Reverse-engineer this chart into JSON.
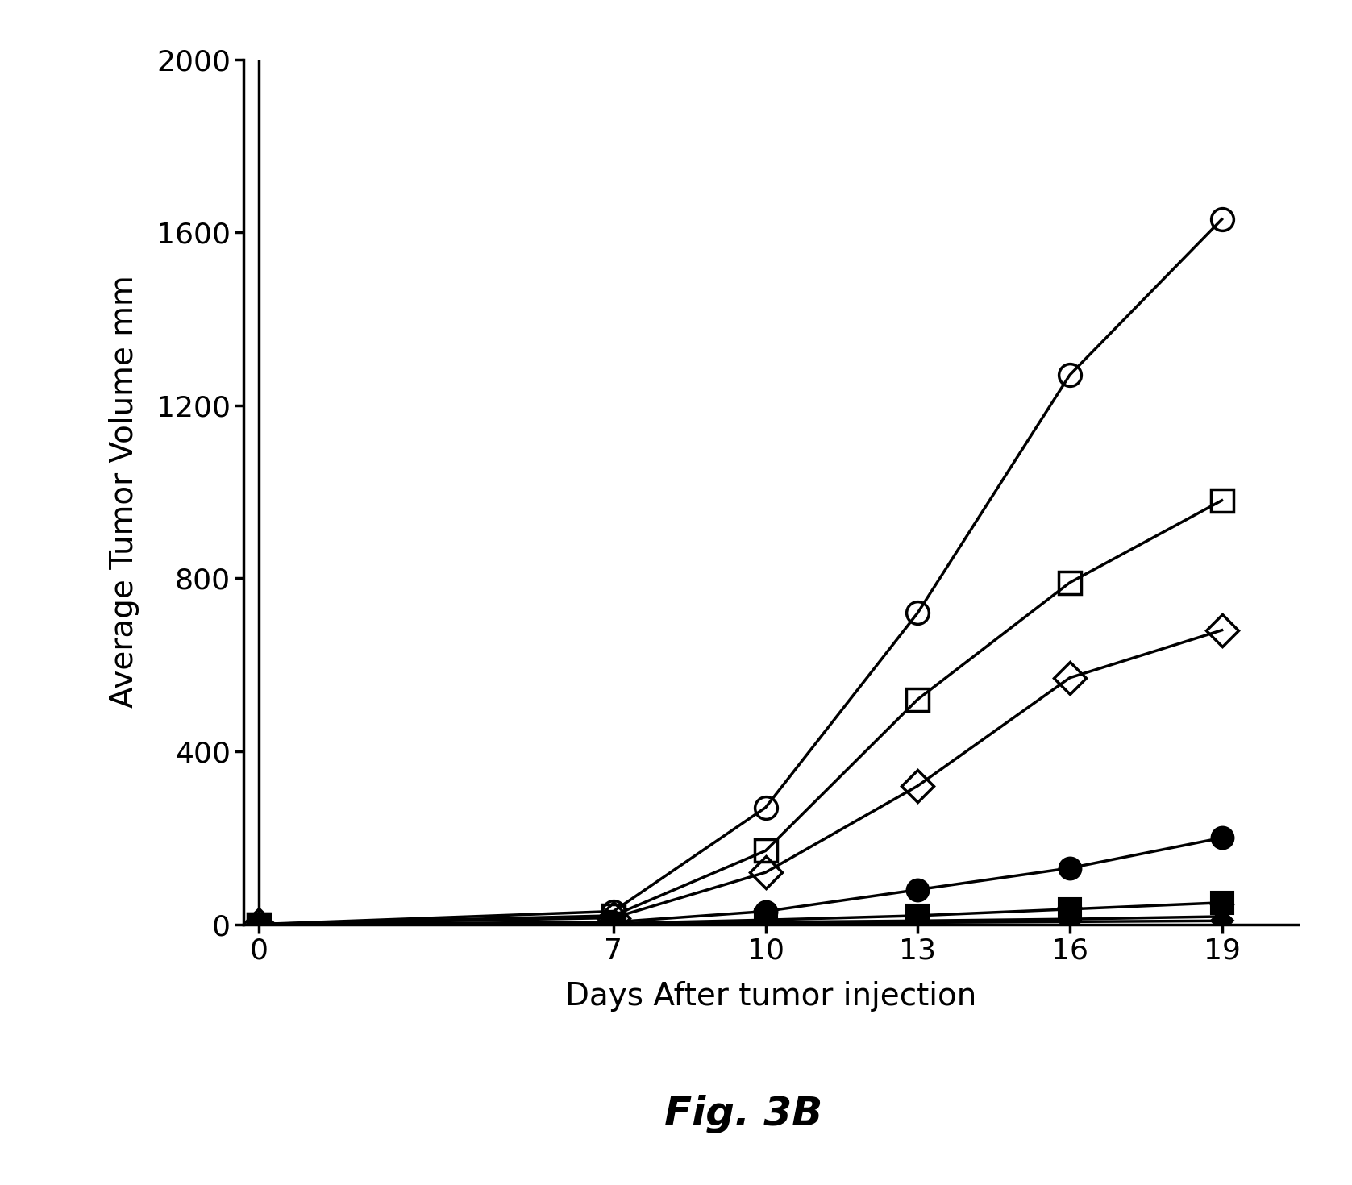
{
  "x": [
    0,
    7,
    10,
    13,
    16,
    19
  ],
  "series": [
    {
      "name": "open_circle",
      "y": [
        0,
        30,
        270,
        720,
        1270,
        1630
      ],
      "marker": "o",
      "fillstyle": "none",
      "color": "#000000",
      "markersize": 20,
      "linewidth": 2.5,
      "markeredgewidth": 2.5
    },
    {
      "name": "open_square",
      "y": [
        0,
        20,
        170,
        520,
        790,
        980
      ],
      "marker": "s",
      "fillstyle": "none",
      "color": "#000000",
      "markersize": 20,
      "linewidth": 2.5,
      "markeredgewidth": 2.5
    },
    {
      "name": "open_diamond",
      "y": [
        0,
        15,
        120,
        320,
        570,
        680
      ],
      "marker": "D",
      "fillstyle": "none",
      "color": "#000000",
      "markersize": 20,
      "linewidth": 2.5,
      "markeredgewidth": 2.5
    },
    {
      "name": "filled_circle",
      "y": [
        0,
        5,
        30,
        80,
        130,
        200
      ],
      "marker": "o",
      "fillstyle": "full",
      "color": "#000000",
      "markersize": 20,
      "linewidth": 2.5,
      "markeredgewidth": 1.5
    },
    {
      "name": "filled_square",
      "y": [
        0,
        2,
        10,
        20,
        35,
        50
      ],
      "marker": "s",
      "fillstyle": "full",
      "color": "#000000",
      "markersize": 20,
      "linewidth": 2.5,
      "markeredgewidth": 1.5
    },
    {
      "name": "filled_triangle_down",
      "y": [
        0,
        1,
        5,
        8,
        12,
        18
      ],
      "marker": "v",
      "fillstyle": "full",
      "color": "#000000",
      "markersize": 20,
      "linewidth": 2.5,
      "markeredgewidth": 1.5
    },
    {
      "name": "filled_diamond",
      "y": [
        0,
        1,
        2,
        4,
        6,
        8
      ],
      "marker": "D",
      "fillstyle": "full",
      "color": "#000000",
      "markersize": 14,
      "linewidth": 2.5,
      "markeredgewidth": 1.5
    }
  ],
  "xlabel": "Days After tumor injection",
  "ylabel": "Average Tumor Volume mm",
  "ylim": [
    0,
    2000
  ],
  "yticks": [
    0,
    400,
    800,
    1200,
    1600,
    2000
  ],
  "xticks": [
    0,
    7,
    10,
    13,
    16,
    19
  ],
  "fig_label": "Fig. 3B",
  "background_color": "#ffffff",
  "xlabel_fontsize": 28,
  "ylabel_fontsize": 28,
  "tick_fontsize": 26,
  "fig_label_fontsize": 36,
  "spine_linewidth": 2.5
}
